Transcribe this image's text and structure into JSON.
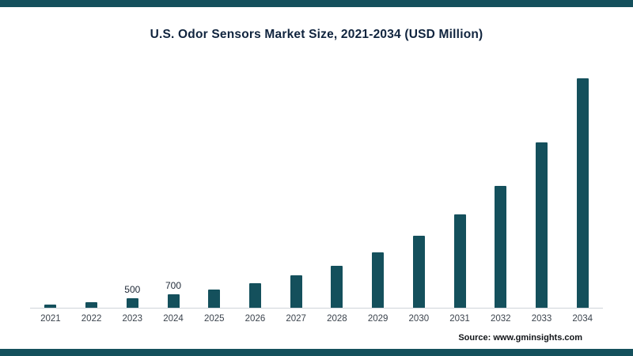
{
  "chart_data": {
    "type": "bar",
    "title": "U.S. Odor Sensors Market Size, 2021-2034 (USD Million)",
    "categories": [
      "2021",
      "2022",
      "2023",
      "2024",
      "2025",
      "2026",
      "2027",
      "2028",
      "2029",
      "2030",
      "2031",
      "2032",
      "2033",
      "2034"
    ],
    "values": [
      180,
      300,
      500,
      700,
      950,
      1300,
      1700,
      2200,
      2900,
      3800,
      4900,
      6400,
      8700,
      12100
    ],
    "value_labels": [
      "",
      "",
      "500",
      "700",
      "",
      "",
      "",
      "",
      "",
      "",
      "",
      "",
      "",
      ""
    ],
    "xlabel": "",
    "ylabel": "",
    "ylim": [
      0,
      12500
    ],
    "grid": false,
    "legend": "none",
    "bar_color": "#14505c",
    "axis_line_color": "#cfd4da",
    "source": "Source: www.gminsights.com"
  }
}
